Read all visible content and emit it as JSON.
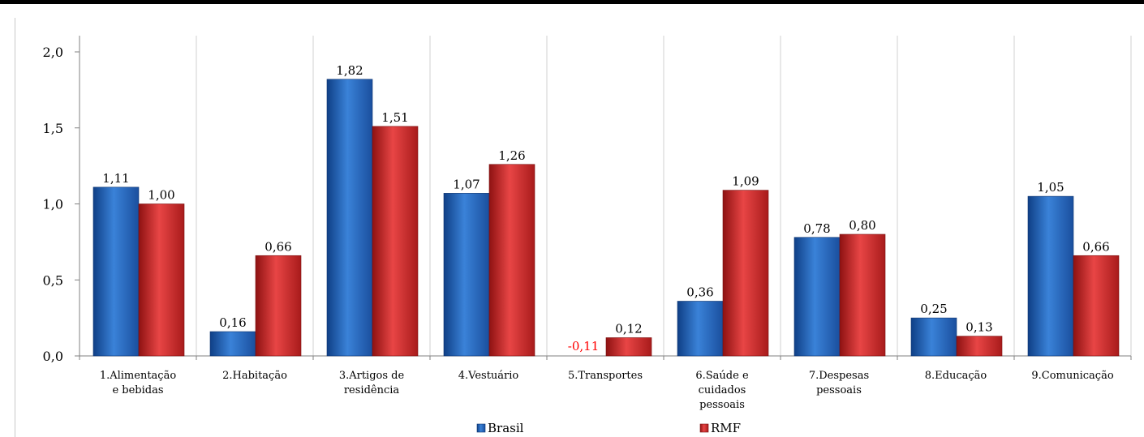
{
  "chart_data": {
    "type": "bar",
    "categories": [
      [
        "1.Alimentação",
        "e bebidas"
      ],
      [
        "2.Habitação"
      ],
      [
        "3.Artigos de",
        "residência"
      ],
      [
        "4.Vestuário"
      ],
      [
        "5.Transportes"
      ],
      [
        "6.Saúde e",
        "cuidados",
        "pessoais"
      ],
      [
        "7.Despesas",
        "pessoais"
      ],
      [
        "8.Educação"
      ],
      [
        "9.Comunicação"
      ]
    ],
    "series": [
      {
        "name": "Brasil",
        "values": [
          1.11,
          0.16,
          1.82,
          1.07,
          -0.11,
          0.36,
          0.78,
          0.25,
          1.05
        ],
        "labels": [
          "1,11",
          "0,16",
          "1,82",
          "1,07",
          "-0,11",
          "0,36",
          "0,78",
          "0,25",
          "1,05"
        ],
        "color": "#2f6fc4"
      },
      {
        "name": "RMF",
        "values": [
          1.0,
          0.66,
          1.51,
          1.26,
          0.12,
          1.09,
          0.8,
          0.13,
          0.66
        ],
        "labels": [
          "1,00",
          "0,66",
          "1,51",
          "1,26",
          "0,12",
          "1,09",
          "0,80",
          "0,13",
          "0,66"
        ],
        "color": "#d42f2f"
      }
    ],
    "ylim": [
      0,
      2.0
    ],
    "yticks": [
      0.0,
      0.5,
      1.0,
      1.5,
      2.0
    ],
    "ytick_labels": [
      "0,0",
      "0,5",
      "1,0",
      "1,5",
      "2,0"
    ],
    "title": "",
    "xlabel": "",
    "ylabel": "",
    "grid": "vertical-category-separators",
    "legend": "bottom-center",
    "negative_label_color": "#ff0000"
  }
}
